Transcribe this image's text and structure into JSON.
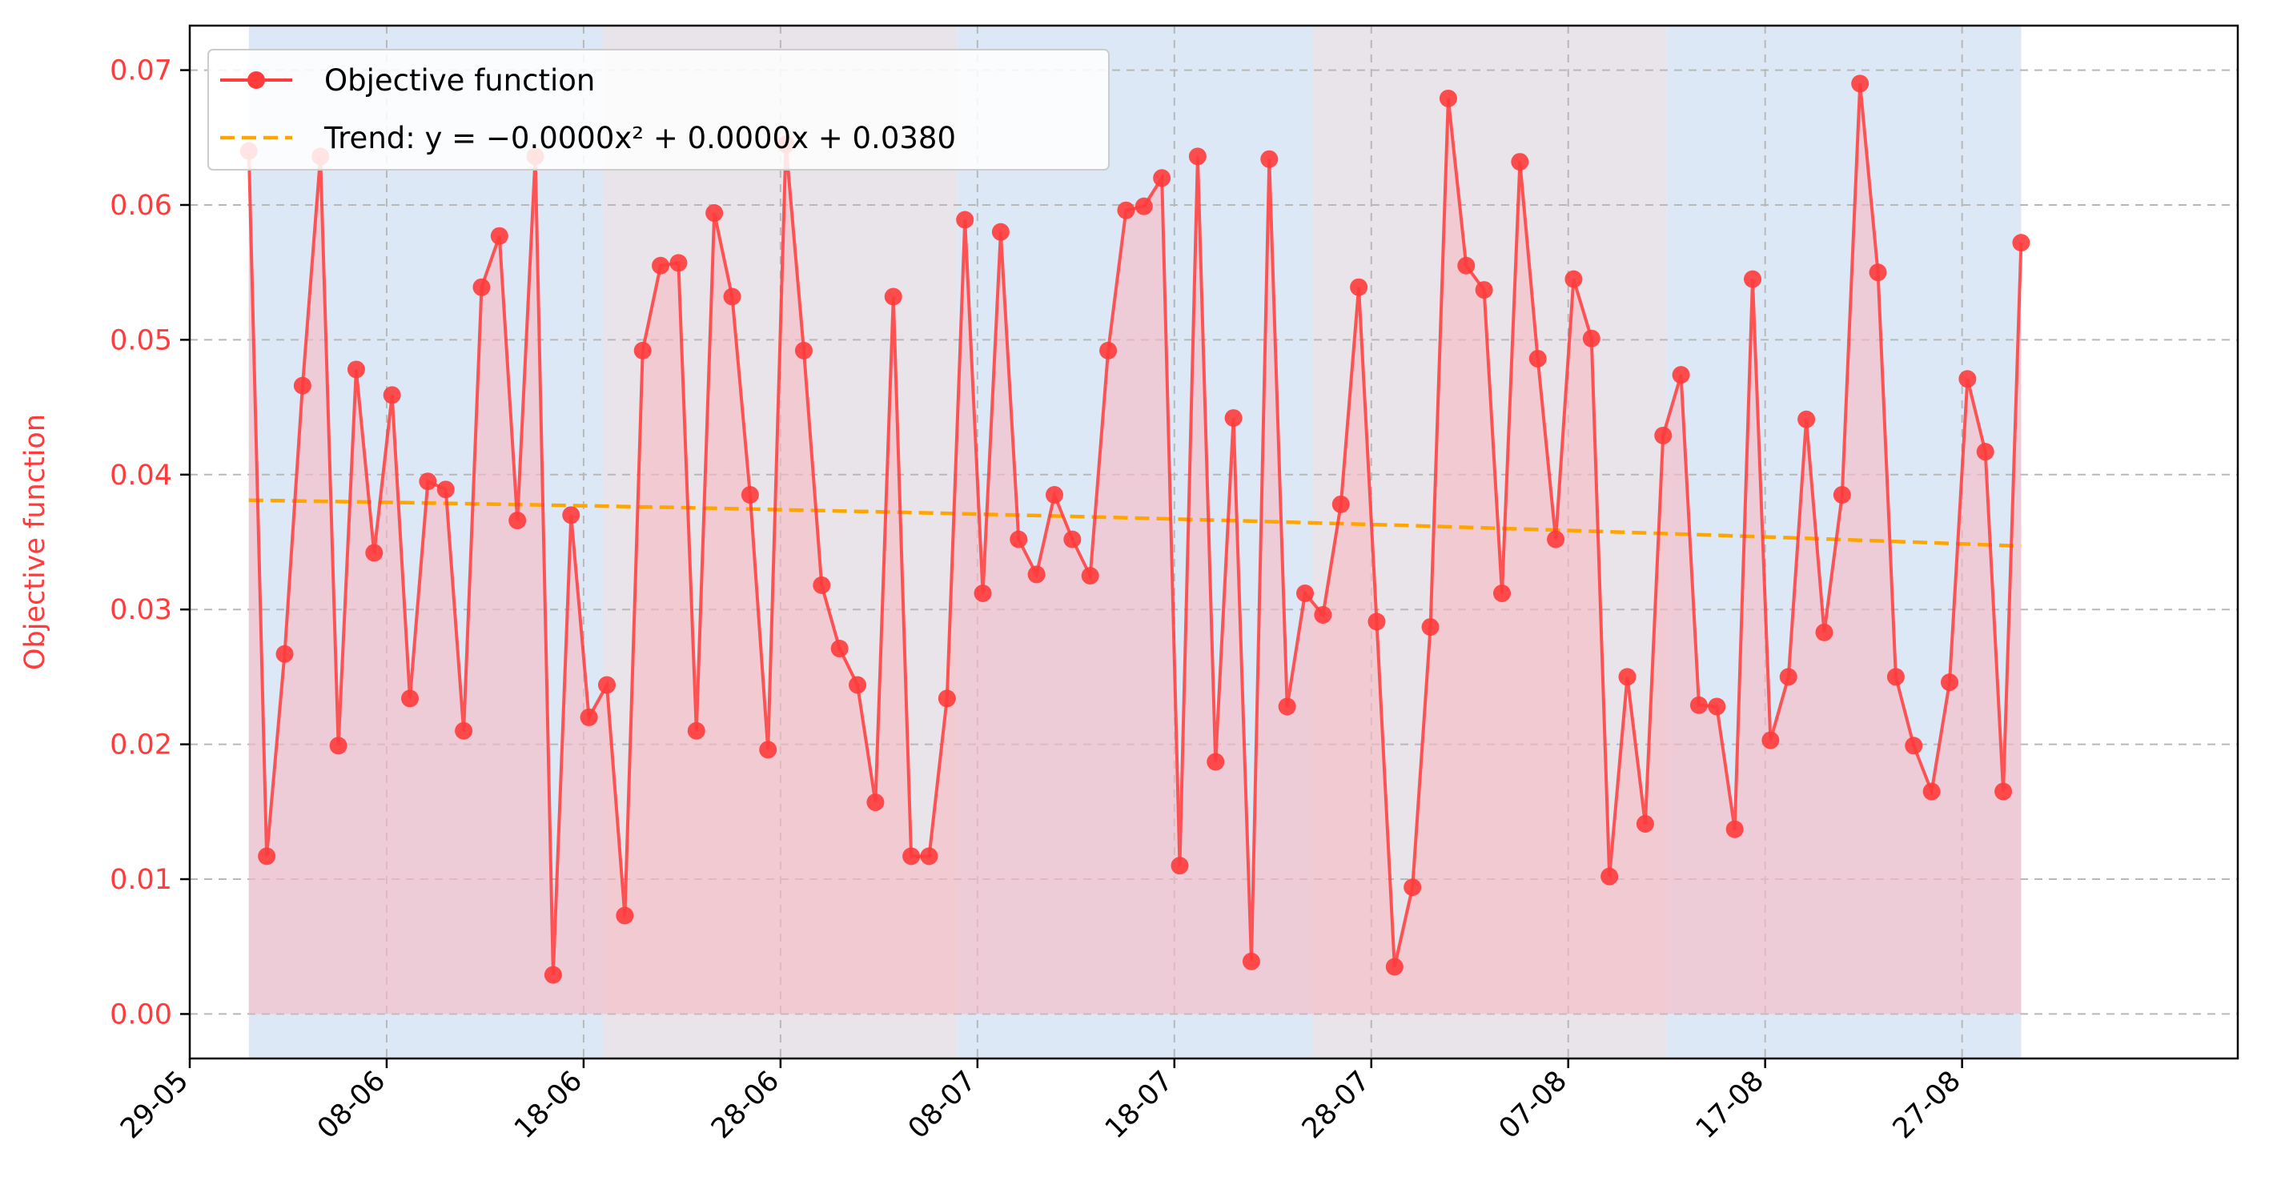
{
  "chart_data": {
    "type": "line",
    "title": "",
    "xlabel": "",
    "ylabel": "Objective function",
    "x_start_date": "2024-06-01",
    "x_ticks": [
      "29-05",
      "08-06",
      "18-06",
      "28-06",
      "08-07",
      "18-07",
      "28-07",
      "07-08",
      "17-08",
      "27-08"
    ],
    "y_ticks": [
      "0.00",
      "0.01",
      "0.02",
      "0.03",
      "0.04",
      "0.05",
      "0.06",
      "0.07"
    ],
    "ylim": [
      -0.0033,
      0.0733
    ],
    "grid": true,
    "legend_position": "top-left",
    "colors": {
      "series": "#ff3b3b",
      "trend": "#ffa500",
      "fill": "#f8b9c3",
      "band_blue": "#dce8f5",
      "band_gray": "#e8e4e9",
      "axis_text": "#ff3b3b"
    },
    "bands": [
      {
        "start_day": 0,
        "end_day": 18,
        "color": "band_blue"
      },
      {
        "start_day": 18,
        "end_day": 36,
        "color": "band_gray"
      },
      {
        "start_day": 36,
        "end_day": 54,
        "color": "band_blue"
      },
      {
        "start_day": 54,
        "end_day": 72,
        "color": "band_gray"
      },
      {
        "start_day": 72,
        "end_day": 90,
        "color": "band_blue"
      }
    ],
    "series": [
      {
        "name": "Objective function",
        "values": [
          0.064,
          0.0117,
          0.0267,
          0.0466,
          0.0636,
          0.0199,
          0.0478,
          0.0342,
          0.0459,
          0.0234,
          0.0395,
          0.0389,
          0.021,
          0.0539,
          0.0577,
          0.0366,
          0.0636,
          0.0029,
          0.037,
          0.022,
          0.0244,
          0.0073,
          0.0492,
          0.0555,
          0.0557,
          0.021,
          0.0594,
          0.0532,
          0.0385,
          0.0196,
          0.0645,
          0.0492,
          0.0318,
          0.0271,
          0.0244,
          0.0157,
          0.0532,
          0.0117,
          0.0117,
          0.0234,
          0.0589,
          0.0312,
          0.058,
          0.0352,
          0.0326,
          0.0385,
          0.0352,
          0.0325,
          0.0492,
          0.0596,
          0.0599,
          0.062,
          0.011,
          0.0636,
          0.0187,
          0.0442,
          0.0039,
          0.0634,
          0.0228,
          0.0312,
          0.0296,
          0.0378,
          0.0539,
          0.0291,
          0.0035,
          0.0094,
          0.0287,
          0.0679,
          0.0555,
          0.0537,
          0.0312,
          0.0632,
          0.0486,
          0.0352,
          0.0545,
          0.0501,
          0.0102,
          0.025,
          0.0141,
          0.0429,
          0.0474,
          0.0229,
          0.0228,
          0.0137,
          0.0545,
          0.0203,
          0.025,
          0.0441,
          0.0283,
          0.0385,
          0.069,
          0.055,
          0.025,
          0.0199,
          0.0165,
          0.0246,
          0.0471,
          0.0417,
          0.0165,
          0.0572
        ]
      },
      {
        "name": "Trend: y = −0.0000x² + 0.0000x + 0.0380",
        "start": 0.0381,
        "end": 0.0347
      }
    ]
  }
}
